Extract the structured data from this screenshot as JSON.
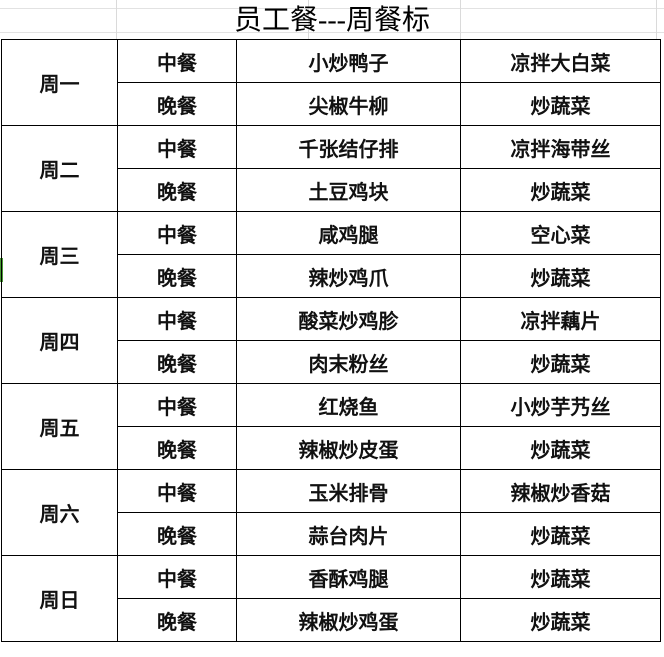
{
  "title": "员工餐---周餐标",
  "accent_color": "#4a9a35",
  "days": [
    {
      "day": "周一",
      "meals": [
        {
          "meal": "中餐",
          "main": "小炒鸭子",
          "side": "凉拌大白菜"
        },
        {
          "meal": "晚餐",
          "main": "尖椒牛柳",
          "side": "炒蔬菜"
        }
      ]
    },
    {
      "day": "周二",
      "meals": [
        {
          "meal": "中餐",
          "main": "千张结仔排",
          "side": "凉拌海带丝"
        },
        {
          "meal": "晚餐",
          "main": "土豆鸡块",
          "side": "炒蔬菜"
        }
      ]
    },
    {
      "day": "周三",
      "meals": [
        {
          "meal": "中餐",
          "main": "咸鸡腿",
          "side": "空心菜"
        },
        {
          "meal": "晚餐",
          "main": "辣炒鸡爪",
          "side": "炒蔬菜"
        }
      ]
    },
    {
      "day": "周四",
      "meals": [
        {
          "meal": "中餐",
          "main": "酸菜炒鸡胗",
          "side": "凉拌藕片"
        },
        {
          "meal": "晚餐",
          "main": "肉末粉丝",
          "side": "炒蔬菜"
        }
      ]
    },
    {
      "day": "周五",
      "meals": [
        {
          "meal": "中餐",
          "main": "红烧鱼",
          "side": "小炒芋艿丝"
        },
        {
          "meal": "晚餐",
          "main": "辣椒炒皮蛋",
          "side": "炒蔬菜"
        }
      ]
    },
    {
      "day": "周六",
      "meals": [
        {
          "meal": "中餐",
          "main": "玉米排骨",
          "side": "辣椒炒香菇"
        },
        {
          "meal": "晚餐",
          "main": "蒜台肉片",
          "side": "炒蔬菜"
        }
      ]
    },
    {
      "day": "周日",
      "meals": [
        {
          "meal": "中餐",
          "main": "香酥鸡腿",
          "side": "炒蔬菜"
        },
        {
          "meal": "晚餐",
          "main": "辣椒炒鸡蛋",
          "side": "炒蔬菜"
        }
      ]
    }
  ]
}
